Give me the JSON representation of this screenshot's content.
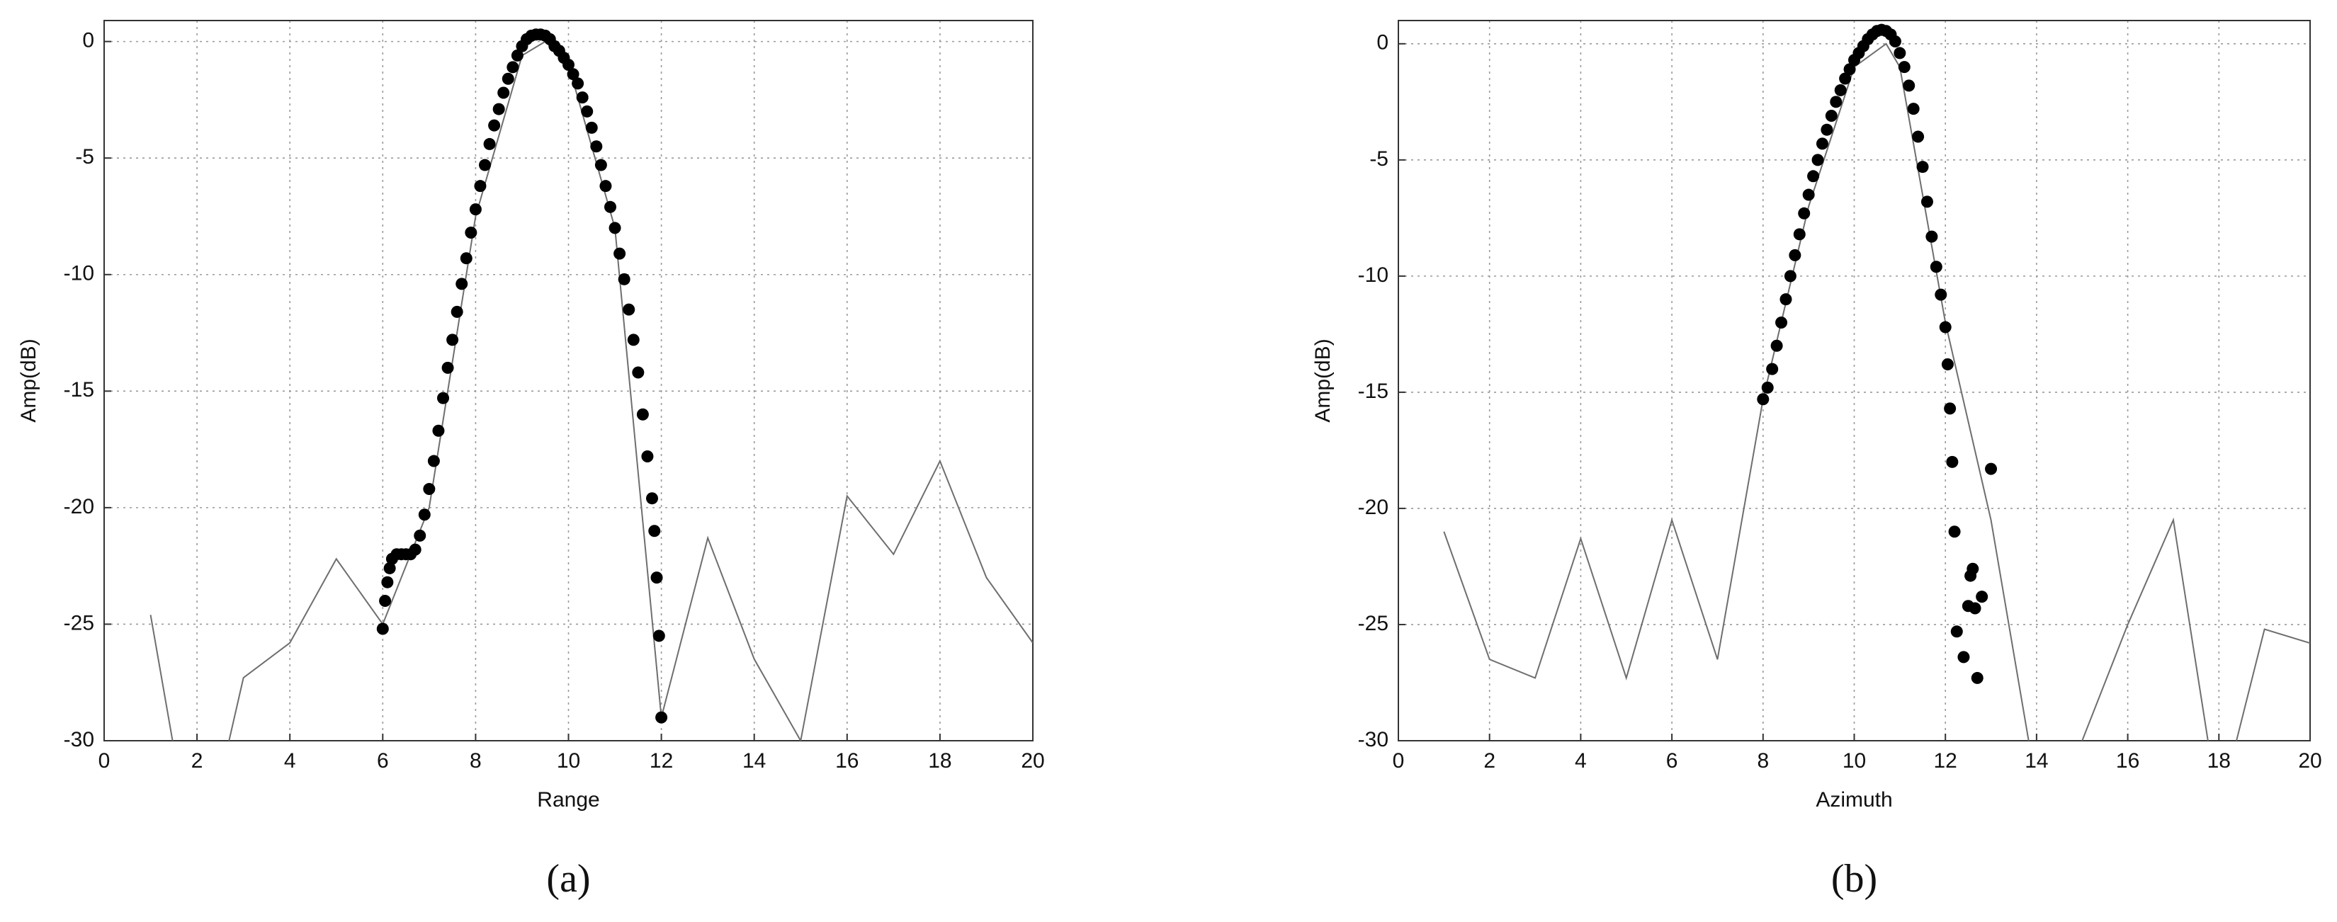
{
  "chart_data": [
    {
      "type": "scatter",
      "xlabel": "Range",
      "ylabel": "Amp(dB)",
      "caption": "(a)",
      "xlim": [
        0,
        20
      ],
      "ylim": [
        -30,
        0.9
      ],
      "xticks": [
        0,
        2,
        4,
        6,
        8,
        10,
        12,
        14,
        16,
        18,
        20
      ],
      "yticks": [
        -30,
        -25,
        -20,
        -15,
        -10,
        -5,
        0
      ],
      "grid": true,
      "series": [
        {
          "type": "line",
          "color": "#6e6e6e",
          "x": [
            1,
            2,
            3,
            4,
            5,
            6,
            7,
            8,
            9,
            9.5,
            10,
            11,
            12,
            13,
            14,
            15,
            16,
            17,
            18,
            19,
            20
          ],
          "values": [
            -24.6,
            -36,
            -27.3,
            -25.8,
            -22.2,
            -25,
            -20,
            -7.5,
            -0.6,
            0,
            -1,
            -8,
            -29,
            -21.3,
            -26.5,
            -30,
            -19.5,
            -22,
            -18,
            -23,
            -25.8
          ]
        },
        {
          "type": "scatter",
          "color": "#000000",
          "x": [
            6.0,
            6.05,
            6.1,
            6.15,
            6.2,
            6.3,
            6.4,
            6.5,
            6.6,
            6.7,
            6.8,
            6.9,
            7.0,
            7.1,
            7.2,
            7.3,
            7.4,
            7.5,
            7.6,
            7.7,
            7.8,
            7.9,
            8.0,
            8.1,
            8.2,
            8.3,
            8.4,
            8.5,
            8.6,
            8.7,
            8.8,
            8.9,
            9.0,
            9.1,
            9.2,
            9.3,
            9.4,
            9.5,
            9.6,
            9.7,
            9.8,
            9.9,
            10.0,
            10.1,
            10.2,
            10.3,
            10.4,
            10.5,
            10.6,
            10.7,
            10.8,
            10.9,
            11.0,
            11.1,
            11.2,
            11.3,
            11.4,
            11.5,
            11.6,
            11.7,
            11.8,
            11.85,
            11.9,
            11.95,
            12.0
          ],
          "values": [
            -25.2,
            -24,
            -23.2,
            -22.6,
            -22.2,
            -22,
            -22,
            -22,
            -22,
            -21.8,
            -21.2,
            -20.3,
            -19.2,
            -18,
            -16.7,
            -15.3,
            -14,
            -12.8,
            -11.6,
            -10.4,
            -9.3,
            -8.2,
            -7.2,
            -6.2,
            -5.3,
            -4.4,
            -3.6,
            -2.9,
            -2.2,
            -1.6,
            -1.1,
            -0.6,
            -0.2,
            0.1,
            0.25,
            0.3,
            0.3,
            0.25,
            0.1,
            -0.2,
            -0.4,
            -0.7,
            -1.0,
            -1.4,
            -1.8,
            -2.4,
            -3,
            -3.7,
            -4.5,
            -5.3,
            -6.2,
            -7.1,
            -8,
            -9.1,
            -10.2,
            -11.5,
            -12.8,
            -14.2,
            -16,
            -17.8,
            -19.6,
            -21,
            -23,
            -25.5,
            -29
          ]
        }
      ]
    },
    {
      "type": "scatter",
      "xlabel": "Azimuth",
      "ylabel": "Amp(dB)",
      "caption": "(b)",
      "xlim": [
        0,
        20
      ],
      "ylim": [
        -30,
        1
      ],
      "xticks": [
        0,
        2,
        4,
        6,
        8,
        10,
        12,
        14,
        16,
        18,
        20
      ],
      "yticks": [
        -30,
        -25,
        -20,
        -15,
        -10,
        -5,
        0
      ],
      "grid": true,
      "series": [
        {
          "type": "line",
          "color": "#6e6e6e",
          "x": [
            1,
            2,
            3,
            4,
            5,
            6,
            7,
            8,
            9,
            10,
            10.7,
            11,
            12,
            13,
            14,
            15,
            16,
            17,
            18,
            19,
            20
          ],
          "values": [
            -21,
            -26.5,
            -27.3,
            -21.3,
            -27.3,
            -20.5,
            -26.5,
            -15.3,
            -7,
            -1,
            0,
            -1,
            -12,
            -20.5,
            -32,
            -30,
            -25,
            -20.5,
            -33,
            -25.2,
            -25.8
          ]
        },
        {
          "type": "scatter",
          "color": "#000000",
          "x": [
            8.0,
            8.1,
            8.2,
            8.3,
            8.4,
            8.5,
            8.6,
            8.7,
            8.8,
            8.9,
            9.0,
            9.1,
            9.2,
            9.3,
            9.4,
            9.5,
            9.6,
            9.7,
            9.8,
            9.9,
            10.0,
            10.1,
            10.2,
            10.3,
            10.4,
            10.5,
            10.6,
            10.7,
            10.8,
            10.9,
            11.0,
            11.1,
            11.2,
            11.3,
            11.4,
            11.5,
            11.6,
            11.7,
            11.8,
            11.9,
            12.0,
            12.05,
            12.1,
            12.15,
            12.2,
            12.25,
            12.4,
            12.5,
            12.55,
            12.6,
            12.65,
            12.7,
            12.8,
            13.0
          ],
          "values": [
            -15.3,
            -14.8,
            -14,
            -13,
            -12,
            -11,
            -10,
            -9.1,
            -8.2,
            -7.3,
            -6.5,
            -5.7,
            -5,
            -4.3,
            -3.7,
            -3.1,
            -2.5,
            -2,
            -1.5,
            -1.1,
            -0.7,
            -0.4,
            -0.1,
            0.2,
            0.4,
            0.55,
            0.6,
            0.55,
            0.4,
            0.1,
            -0.4,
            -1,
            -1.8,
            -2.8,
            -4,
            -5.3,
            -6.8,
            -8.3,
            -9.6,
            -10.8,
            -12.2,
            -13.8,
            -15.7,
            -18,
            -21,
            -25.3,
            -26.4,
            -24.2,
            -22.9,
            -22.6,
            -24.3,
            -27.3,
            -23.8,
            -18.3
          ]
        }
      ]
    }
  ]
}
